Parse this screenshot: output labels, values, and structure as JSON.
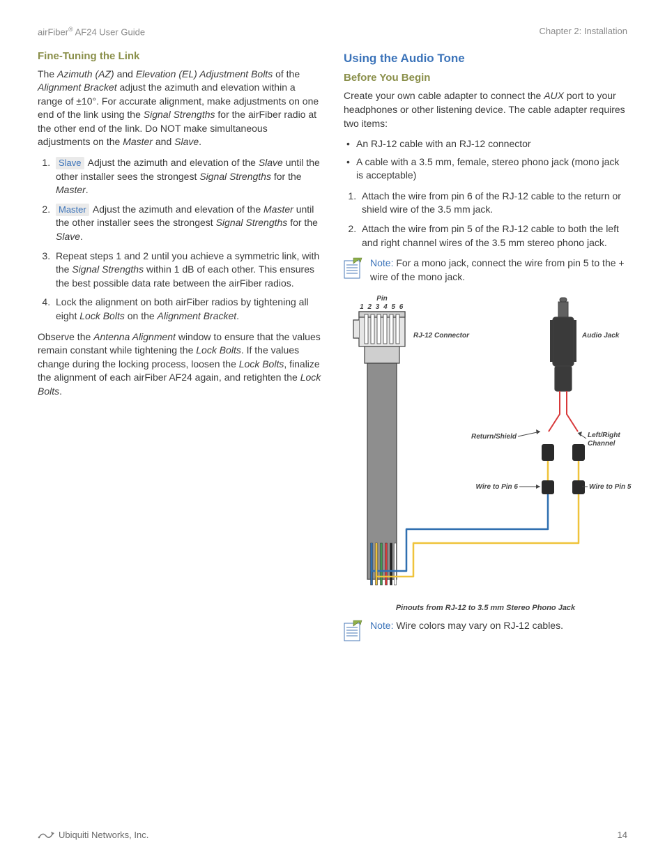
{
  "header": {
    "left_prefix": "airFiber",
    "left_sup": "®",
    "left_suffix": " AF24 User Guide",
    "right": "Chapter 2: Installation"
  },
  "left_col": {
    "h_fine_tuning": "Fine-Tuning the Link",
    "p1_a": "The ",
    "p1_i1": "Azimuth (AZ)",
    "p1_b": " and ",
    "p1_i2": "Elevation (EL) Adjustment Bolts",
    "p1_c": " of the ",
    "p1_i3": "Alignment Bracket",
    "p1_d": " adjust the azimuth and elevation within a range of ±10°. For accurate alignment, make adjustments on one end of the link using the ",
    "p1_i4": "Signal Strengths",
    "p1_e": " for the airFiber radio at the other end of the link. Do NOT make simultaneous adjustments on the ",
    "p1_i5": "Master",
    "p1_f": " and ",
    "p1_i6": "Slave",
    "p1_g": ".",
    "ol1": {
      "i1_tag": "Slave",
      "i1_a": " Adjust the azimuth and elevation of the ",
      "i1_i1": "Slave",
      "i1_b": " until the other installer sees the strongest ",
      "i1_i2": "Signal Strengths",
      "i1_c": " for the ",
      "i1_i3": "Master",
      "i1_d": ".",
      "i2_tag": "Master",
      "i2_a": " Adjust the azimuth and elevation of the ",
      "i2_i1": "Master",
      "i2_b": " until the other installer sees the strongest ",
      "i2_i2": "Signal Strengths",
      "i2_c": " for the ",
      "i2_i3": "Slave",
      "i2_d": ".",
      "i3_a": "Repeat steps 1 and 2 until you achieve a symmetric link, with the ",
      "i3_i1": "Signal Strengths",
      "i3_b": " within 1 dB of each other. This ensures the best possible data rate between the airFiber radios.",
      "i4_a": "Lock the alignment on both airFiber radios by tightening all eight ",
      "i4_i1": "Lock Bolts",
      "i4_b": " on the ",
      "i4_i2": "Alignment Bracket",
      "i4_c": "."
    },
    "p2_a": "Observe the ",
    "p2_i1": "Antenna Alignment",
    "p2_b": " window to ensure that the values remain constant while tightening the ",
    "p2_i2": "Lock Bolts",
    "p2_c": ". If the values change during the locking process, loosen the ",
    "p2_i3": "Lock Bolts",
    "p2_d": ", finalize the alignment of each airFiber AF24 again, and retighten the ",
    "p2_i4": "Lock Bolts",
    "p2_e": "."
  },
  "right_col": {
    "h_audio": "Using the Audio Tone",
    "h_before": "Before You Begin",
    "p1_a": "Create your own cable adapter to connect the ",
    "p1_i1": "AUX",
    "p1_b": " port to your headphones or other listening device. The cable adapter requires two items:",
    "bul1": "An RJ-12 cable with an RJ-12 connector",
    "bul2": "A cable with a 3.5 mm, female, stereo phono jack (mono jack is acceptable)",
    "ol_i1": "Attach the wire from pin 6 of the RJ-12 cable to the return or shield wire of the 3.5 mm jack.",
    "ol_i2": "Attach the wire from pin 5 of the RJ-12 cable to both the left and right channel wires of the 3.5 mm stereo phono jack.",
    "note1_label": "Note: ",
    "note1_text": "For a mono jack, connect the wire from pin 5 to the + wire of the mono jack.",
    "diagram": {
      "pin_label": "Pin",
      "pin_nums": "1 2 3 4 5 6",
      "rj12_conn": "RJ-12 Connector",
      "audio_jack": "Audio Jack",
      "return_shield": "Return/Shield",
      "lr_channel_1": "Left/Right",
      "lr_channel_2": "Channel",
      "wire_pin6": "Wire to Pin 6",
      "wire_pin5": "Wire to Pin 5",
      "caption": "Pinouts from RJ-12 to 3.5 mm Stereo Phono Jack",
      "colors": {
        "outline": "#404040",
        "cable_body": "#8e8e8e",
        "connector_light": "#e6e6e6",
        "connector_mid": "#cfcfcf",
        "jack_dark": "#3a3a3a",
        "jack_mid": "#606060",
        "band": "#2a2a2a",
        "red": "#d8393a",
        "yellow": "#efc33b",
        "green": "#3f9a4f",
        "blue": "#2f6fb0",
        "black": "#1f1f1f"
      }
    },
    "note2_label": "Note: ",
    "note2_text": "Wire colors may vary on RJ-12 cables."
  },
  "footer": {
    "company": "Ubiquiti Networks, Inc.",
    "page_no": "14"
  }
}
